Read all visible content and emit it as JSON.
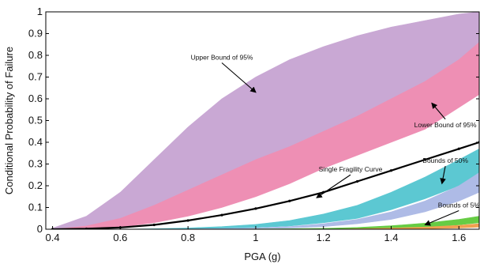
{
  "chart_data": {
    "type": "line",
    "xlabel": "PGA (g)",
    "ylabel": "Conditional Probability of Failure",
    "xlim": [
      0.38,
      1.66
    ],
    "ylim": [
      0,
      1
    ],
    "xticks": [
      "0.4",
      "0.6",
      "0.8",
      "1",
      "1.2",
      "1.4",
      "1.6"
    ],
    "yticks": [
      "0",
      "0.1",
      "0.2",
      "0.3",
      "0.4",
      "0.5",
      "0.6",
      "0.7",
      "0.8",
      "0.9",
      "1"
    ],
    "x": [
      0.4,
      0.5,
      0.6,
      0.7,
      0.8,
      0.9,
      1.0,
      1.1,
      1.2,
      1.3,
      1.4,
      1.5,
      1.6,
      1.66
    ],
    "series": [
      {
        "role": "band",
        "color": "#c9a8d4",
        "upper": [
          0.005,
          0.06,
          0.17,
          0.32,
          0.47,
          0.6,
          0.7,
          0.78,
          0.84,
          0.89,
          0.93,
          0.96,
          0.99,
          1.0
        ],
        "lower": [
          0.0,
          0.015,
          0.05,
          0.11,
          0.18,
          0.25,
          0.32,
          0.38,
          0.45,
          0.51,
          0.57,
          0.65,
          0.73,
          0.78
        ]
      },
      {
        "role": "band",
        "color": "#ee8fb4",
        "upper": [
          0.0,
          0.015,
          0.05,
          0.11,
          0.18,
          0.25,
          0.32,
          0.38,
          0.45,
          0.52,
          0.6,
          0.68,
          0.78,
          0.86
        ],
        "lower": [
          0.0,
          0.002,
          0.01,
          0.03,
          0.06,
          0.1,
          0.15,
          0.21,
          0.28,
          0.34,
          0.4,
          0.46,
          0.56,
          0.62
        ]
      },
      {
        "role": "band",
        "color": "#5cc8d2",
        "upper": [
          0.0,
          0.0,
          0.0,
          0.002,
          0.006,
          0.012,
          0.022,
          0.04,
          0.07,
          0.11,
          0.17,
          0.24,
          0.32,
          0.37
        ],
        "lower": [
          0.0,
          0.0,
          0.0,
          0.0,
          0.002,
          0.004,
          0.008,
          0.015,
          0.03,
          0.05,
          0.09,
          0.14,
          0.2,
          0.24
        ]
      },
      {
        "role": "band",
        "color": "#aebbe6",
        "upper": [
          0.0,
          0.0,
          0.0,
          0.0,
          0.001,
          0.003,
          0.006,
          0.012,
          0.025,
          0.045,
          0.08,
          0.13,
          0.2,
          0.26
        ],
        "lower": [
          0.0,
          0.0,
          0.0,
          0.0,
          0.0,
          0.001,
          0.003,
          0.006,
          0.012,
          0.025,
          0.045,
          0.08,
          0.13,
          0.17
        ]
      },
      {
        "role": "band",
        "color": "#66cc44",
        "upper": [
          0.0,
          0.0,
          0.0,
          0.0,
          0.0,
          0.0,
          0.001,
          0.002,
          0.004,
          0.008,
          0.016,
          0.028,
          0.045,
          0.06
        ],
        "lower": [
          0.0,
          0.0,
          0.0,
          0.0,
          0.0,
          0.0,
          0.0,
          0.0,
          0.001,
          0.002,
          0.005,
          0.01,
          0.02,
          0.03
        ]
      },
      {
        "role": "band",
        "color": "#f0a050",
        "upper": [
          0.0,
          0.0,
          0.0,
          0.0,
          0.0,
          0.0,
          0.0,
          0.0,
          0.0,
          0.002,
          0.005,
          0.01,
          0.018,
          0.025
        ],
        "lower": [
          0.0,
          0.0,
          0.0,
          0.0,
          0.0,
          0.0,
          0.0,
          0.0,
          0.0,
          0.0,
          0.0,
          0.002,
          0.006,
          0.01
        ]
      },
      {
        "role": "line",
        "color": "#000000",
        "values": [
          0.0,
          0.002,
          0.008,
          0.02,
          0.04,
          0.065,
          0.095,
          0.13,
          0.17,
          0.22,
          0.27,
          0.32,
          0.37,
          0.4
        ]
      }
    ],
    "annotations": [
      {
        "text": "Upper Bound of 95%",
        "x": 0.9,
        "y": 0.78,
        "ax": 1.0,
        "ay": 0.63
      },
      {
        "text": "Lower Bound of 95%",
        "x": 1.56,
        "y": 0.47,
        "ax": 1.52,
        "ay": 0.58
      },
      {
        "text": "Bounds of 50%",
        "x": 1.56,
        "y": 0.305,
        "ax": 1.55,
        "ay": 0.21
      },
      {
        "text": "Single Fragility Curve",
        "x": 1.28,
        "y": 0.265,
        "ax": 1.18,
        "ay": 0.145
      },
      {
        "text": "Bounds of 5%",
        "x": 1.6,
        "y": 0.1,
        "ax": 1.5,
        "ay": 0.02
      }
    ],
    "grid": false
  }
}
